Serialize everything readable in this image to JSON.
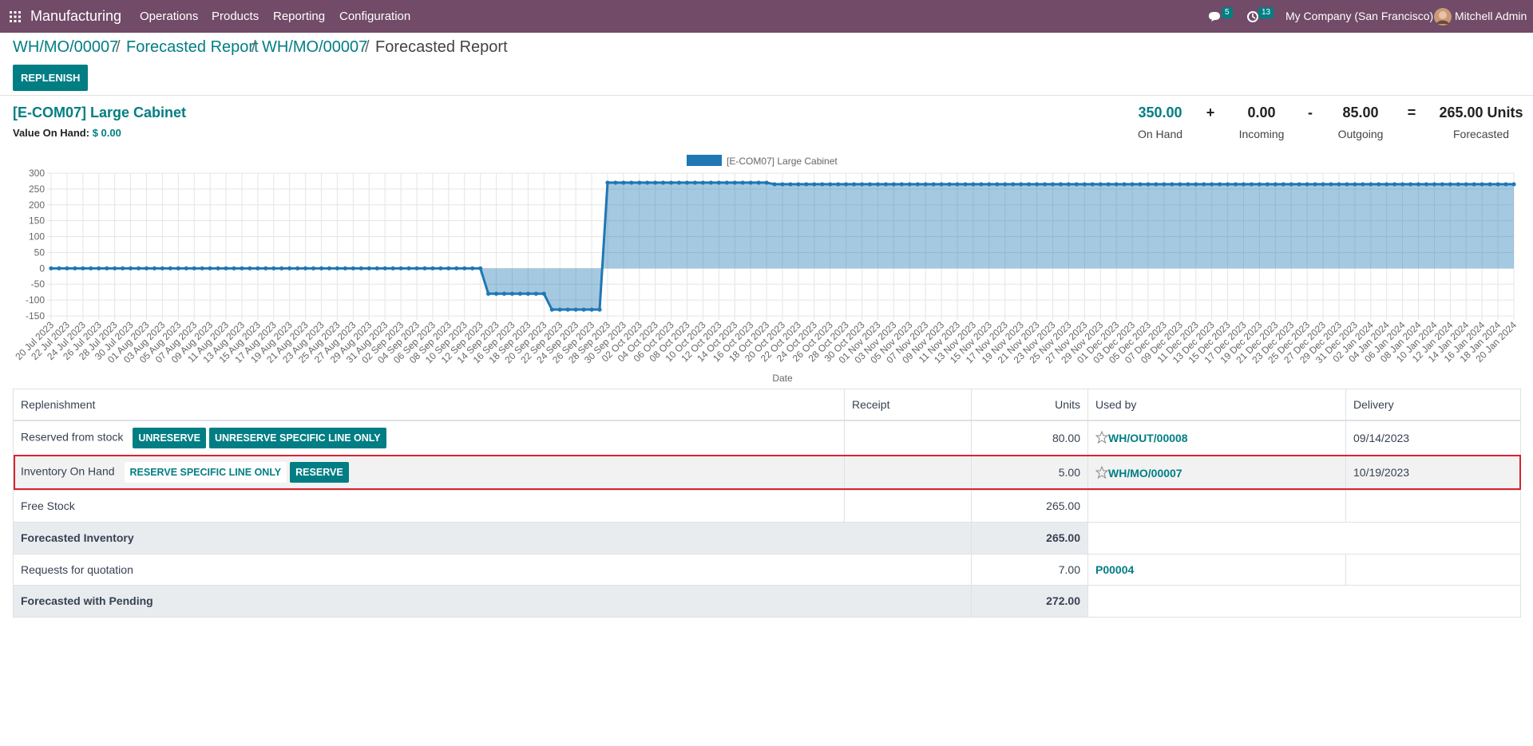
{
  "navbar": {
    "app": "Manufacturing",
    "menu": [
      "Operations",
      "Products",
      "Reporting",
      "Configuration"
    ],
    "messages_count": 5,
    "activities_count": 13,
    "company": "My Company (San Francisco)",
    "user": "Mitchell Admin"
  },
  "breadcrumbs": [
    "WH/MO/00007",
    "Forecasted Report",
    "WH/MO/00007",
    "Forecasted Report"
  ],
  "replenish_button": "REPLENISH",
  "product": {
    "name": "[E-COM07] Large Cabinet",
    "value_label": "Value On Hand:",
    "value": "$ 0.00"
  },
  "summary": {
    "items": [
      {
        "value": "350.00",
        "label": "On Hand"
      },
      {
        "value": "0.00",
        "label": "Incoming"
      },
      {
        "value": "85.00",
        "label": "Outgoing"
      },
      {
        "value": "265.00 Units",
        "label": "Forecasted"
      }
    ],
    "operators": [
      "+",
      "-",
      "="
    ]
  },
  "chart_data": {
    "type": "line",
    "x_label": "Date",
    "grid": true,
    "fill": true,
    "legend": "top",
    "ylim": [
      -150,
      300
    ],
    "yticks": [
      -150,
      -100,
      -50,
      0,
      50,
      100,
      150,
      200,
      250,
      300
    ],
    "categories": [
      "20 Jul 2023",
      null,
      "22 Jul 2023",
      null,
      "24 Jul 2023",
      null,
      "26 Jul 2023",
      null,
      "28 Jul 2023",
      null,
      "30 Jul 2023",
      null,
      "01 Aug 2023",
      null,
      "03 Aug 2023",
      null,
      "05 Aug 2023",
      null,
      "07 Aug 2023",
      null,
      "09 Aug 2023",
      null,
      "11 Aug 2023",
      null,
      "13 Aug 2023",
      null,
      "15 Aug 2023",
      null,
      "17 Aug 2023",
      null,
      "19 Aug 2023",
      null,
      "21 Aug 2023",
      null,
      "23 Aug 2023",
      null,
      "25 Aug 2023",
      null,
      "27 Aug 2023",
      null,
      "29 Aug 2023",
      null,
      "31 Aug 2023",
      null,
      "02 Sep 2023",
      null,
      "04 Sep 2023",
      null,
      "06 Sep 2023",
      null,
      "08 Sep 2023",
      null,
      "10 Sep 2023",
      null,
      "12 Sep 2023",
      null,
      "14 Sep 2023",
      null,
      "16 Sep 2023",
      null,
      "18 Sep 2023",
      null,
      "20 Sep 2023",
      null,
      "22 Sep 2023",
      null,
      "24 Sep 2023",
      null,
      "26 Sep 2023",
      null,
      "28 Sep 2023",
      null,
      "30 Sep 2023",
      null,
      "02 Oct 2023",
      null,
      "04 Oct 2023",
      null,
      "06 Oct 2023",
      null,
      "08 Oct 2023",
      null,
      "10 Oct 2023",
      null,
      "12 Oct 2023",
      null,
      "14 Oct 2023",
      null,
      "16 Oct 2023",
      null,
      "18 Oct 2023",
      null,
      "20 Oct 2023",
      null,
      "22 Oct 2023",
      null,
      "24 Oct 2023",
      null,
      "26 Oct 2023",
      null,
      "28 Oct 2023",
      null,
      "30 Oct 2023",
      null,
      "01 Nov 2023",
      null,
      "03 Nov 2023",
      null,
      "05 Nov 2023",
      null,
      "07 Nov 2023",
      null,
      "09 Nov 2023",
      null,
      "11 Nov 2023",
      null,
      "13 Nov 2023",
      null,
      "15 Nov 2023",
      null,
      "17 Nov 2023",
      null,
      "19 Nov 2023",
      null,
      "21 Nov 2023",
      null,
      "23 Nov 2023",
      null,
      "25 Nov 2023",
      null,
      "27 Nov 2023",
      null,
      "29 Nov 2023",
      null,
      "01 Dec 2023",
      null,
      "03 Dec 2023",
      null,
      "05 Dec 2023",
      null,
      "07 Dec 2023",
      null,
      "09 Dec 2023",
      null,
      "11 Dec 2023",
      null,
      "13 Dec 2023",
      null,
      "15 Dec 2023",
      null,
      "17 Dec 2023",
      null,
      "19 Dec 2023",
      null,
      "21 Dec 2023",
      null,
      "23 Dec 2023",
      null,
      "25 Dec 2023",
      null,
      "27 Dec 2023",
      null,
      "29 Dec 2023",
      null,
      "31 Dec 2023",
      null,
      "02 Jan 2024",
      null,
      "04 Jan 2024",
      null,
      "06 Jan 2024",
      null,
      "08 Jan 2024",
      null,
      "10 Jan 2024",
      null,
      "12 Jan 2024",
      null,
      "14 Jan 2024",
      null,
      "16 Jan 2024",
      null,
      "18 Jan 2024",
      null,
      "20 Jan 2024"
    ],
    "series": [
      {
        "name": "[E-COM07] Large Cabinet",
        "color": "#1f77b4",
        "values": [
          0,
          0,
          0,
          0,
          0,
          0,
          0,
          0,
          0,
          0,
          0,
          0,
          0,
          0,
          0,
          0,
          0,
          0,
          0,
          0,
          0,
          0,
          0,
          0,
          0,
          0,
          0,
          0,
          0,
          0,
          0,
          0,
          0,
          0,
          0,
          0,
          0,
          0,
          0,
          0,
          0,
          0,
          0,
          0,
          0,
          0,
          0,
          0,
          0,
          0,
          0,
          0,
          0,
          0,
          0,
          -80,
          -80,
          -80,
          -80,
          -80,
          -80,
          -80,
          -80,
          -130,
          -130,
          -130,
          -130,
          -130,
          -130,
          -130,
          270,
          270,
          270,
          270,
          270,
          270,
          270,
          270,
          270,
          270,
          270,
          270,
          270,
          270,
          270,
          270,
          270,
          270,
          270,
          270,
          270,
          265,
          265,
          265,
          265,
          265,
          265,
          265,
          265,
          265,
          265,
          265,
          265,
          265,
          265,
          265,
          265,
          265,
          265,
          265,
          265,
          265,
          265,
          265,
          265,
          265,
          265,
          265,
          265,
          265,
          265,
          265,
          265,
          265,
          265,
          265,
          265,
          265,
          265,
          265,
          265,
          265,
          265,
          265,
          265,
          265,
          265,
          265,
          265,
          265,
          265,
          265,
          265,
          265,
          265,
          265,
          265,
          265,
          265,
          265,
          265,
          265,
          265,
          265,
          265,
          265,
          265,
          265,
          265,
          265,
          265,
          265,
          265,
          265,
          265,
          265,
          265,
          265,
          265,
          265,
          265,
          265,
          265,
          265,
          265,
          265,
          265,
          265,
          265,
          265,
          265,
          265,
          265,
          265,
          265
        ]
      }
    ]
  },
  "table": {
    "columns": [
      "Replenishment",
      "Receipt",
      "Units",
      "Used by",
      "Delivery"
    ],
    "rows": [
      {
        "replenishment": "Reserved from stock",
        "buttons": [
          {
            "label": "UNRESERVE",
            "primary": true
          },
          {
            "label": "UNRESERVE SPECIFIC LINE ONLY",
            "primary": true
          }
        ],
        "units": "80.00",
        "used_by": "WH/OUT/00008",
        "delivery": "09/14/2023",
        "highlighted": false
      },
      {
        "replenishment": "Inventory On Hand",
        "buttons": [
          {
            "label": "RESERVE SPECIFIC LINE ONLY",
            "primary": false
          },
          {
            "label": "RESERVE",
            "primary": true
          }
        ],
        "units": "5.00",
        "used_by": "WH/MO/00007",
        "delivery": "10/19/2023",
        "highlighted": true
      },
      {
        "replenishment": "Free Stock",
        "units": "265.00"
      }
    ],
    "totals": [
      {
        "label": "Forecasted Inventory",
        "units": "265.00"
      },
      {
        "label": "Requests for quotation",
        "units": "7.00",
        "used_by": "P00004"
      },
      {
        "label": "Forecasted with Pending",
        "units": "272.00"
      }
    ]
  }
}
